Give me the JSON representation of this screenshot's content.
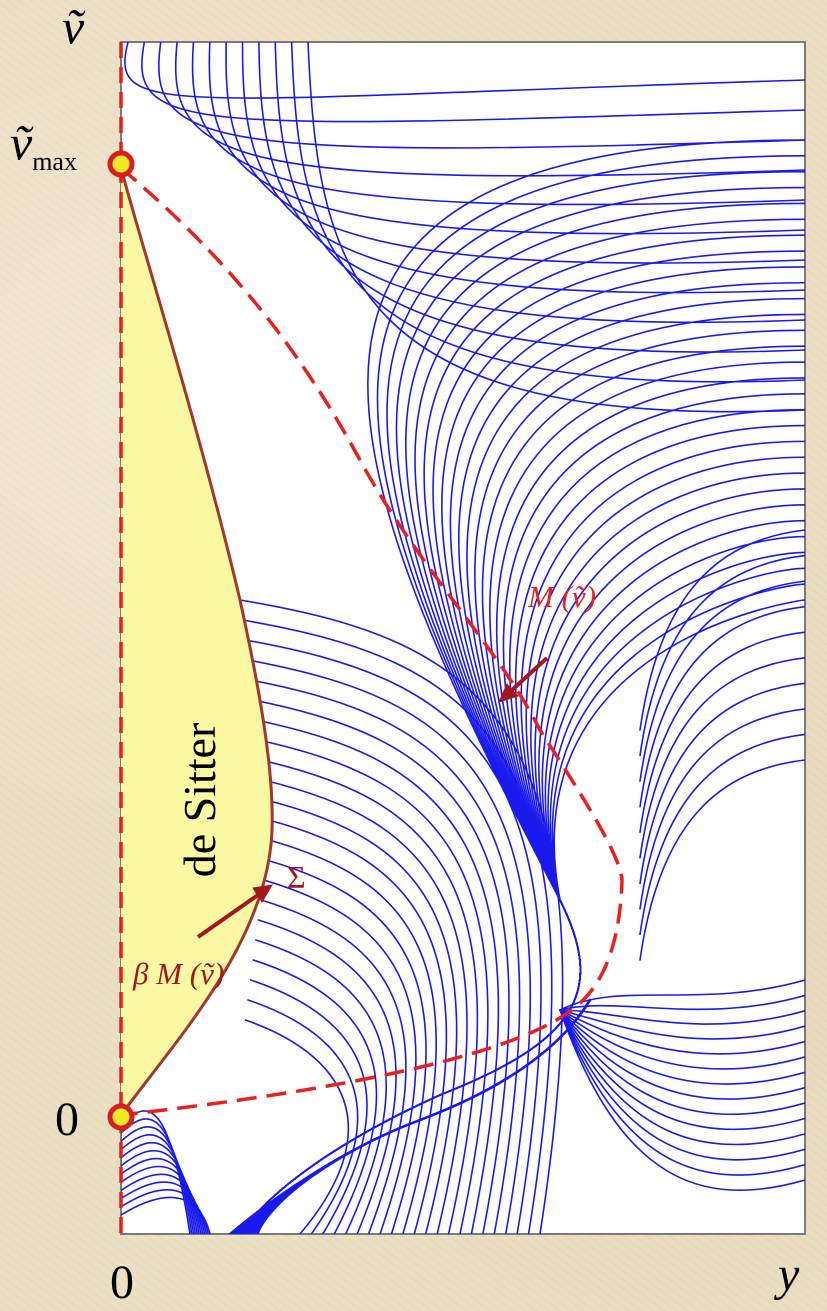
{
  "axes": {
    "y_axis_symbol": "ṽ",
    "x_axis_symbol": "y",
    "tick_top": "ṽ",
    "tick_top_subscript": "max",
    "tick_zero_left": "0",
    "tick_zero_bottom": "0"
  },
  "region": {
    "label": "de Sitter",
    "fill": "#fbf8a4",
    "edge_color": "#a0392c"
  },
  "annotations": {
    "sigma": "Σ",
    "beta_m": "β M (ṽ)",
    "m_curve": "M (ṽ)"
  },
  "colors": {
    "flow_lines": "#1a1aee",
    "dashed_curve": "#e8201c",
    "arrow_dark": "#a3161b",
    "marker_ring": "#d81d1d",
    "marker_fill": "#f3ea26",
    "frame": "#7a7a7a"
  }
}
